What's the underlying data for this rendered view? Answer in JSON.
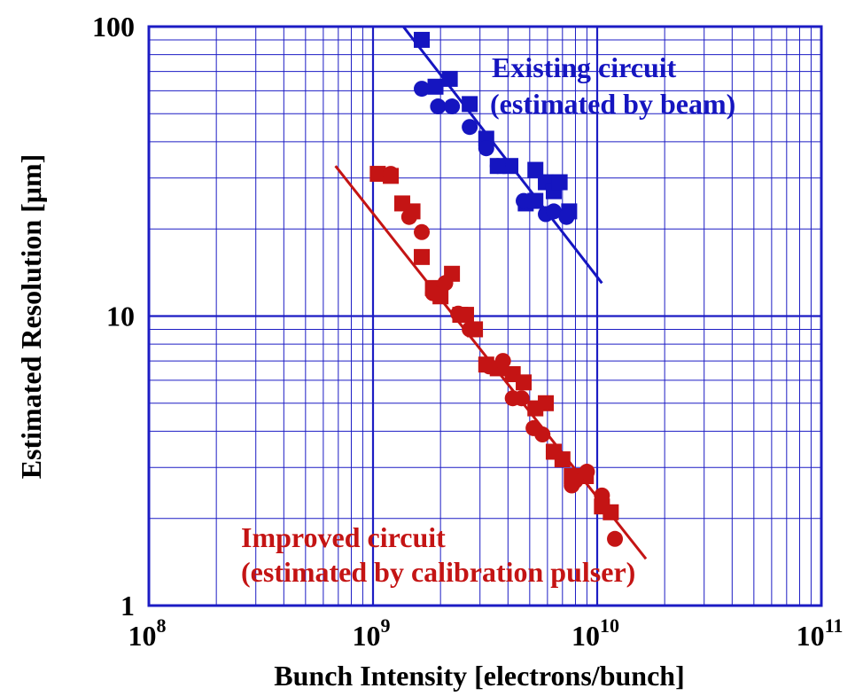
{
  "chart_data": {
    "type": "scatter",
    "xlabel": "Bunch Intensity [electrons/bunch]",
    "ylabel": "Estimated Resolution [μm]",
    "xscale": "log",
    "yscale": "log",
    "xlim": [
      100000000.0,
      100000000000.0
    ],
    "ylim": [
      1,
      100
    ],
    "grid": true,
    "x_ticks": [
      {
        "value": 100000000.0,
        "base": "10",
        "exp": "8"
      },
      {
        "value": 1000000000.0,
        "base": "10",
        "exp": "9"
      },
      {
        "value": 10000000000.0,
        "base": "10",
        "exp": "10"
      },
      {
        "value": 100000000000.0,
        "base": "10",
        "exp": "11"
      }
    ],
    "y_ticks": [
      {
        "value": 1,
        "label": "1"
      },
      {
        "value": 10,
        "label": "10"
      },
      {
        "value": 100,
        "label": "100"
      }
    ],
    "colors": {
      "frame": "#1c1cc4",
      "grid": "#1c1cc4",
      "existing": "#1515c0",
      "improved": "#c41414"
    },
    "series": [
      {
        "name": "Existing circuit (estimated by beam)",
        "color": "#1515c0",
        "marker": "square",
        "points": [
          [
            1650000000.0,
            90
          ],
          [
            1900000000.0,
            62
          ],
          [
            2200000000.0,
            66
          ],
          [
            2700000000.0,
            54
          ],
          [
            3200000000.0,
            41
          ],
          [
            3600000000.0,
            33
          ],
          [
            4100000000.0,
            33
          ],
          [
            4800000000.0,
            24.5
          ],
          [
            5300000000.0,
            32
          ],
          [
            5900000000.0,
            29
          ],
          [
            6400000000.0,
            27
          ],
          [
            6800000000.0,
            29
          ],
          [
            7500000000.0,
            23
          ],
          [
            5300000000.0,
            25
          ]
        ]
      },
      {
        "name": "Existing circuit (estimated by beam)",
        "color": "#1515c0",
        "marker": "circle",
        "points": [
          [
            1650000000.0,
            61
          ],
          [
            1950000000.0,
            53
          ],
          [
            2250000000.0,
            53
          ],
          [
            2700000000.0,
            45
          ],
          [
            3200000000.0,
            38
          ],
          [
            3600000000.0,
            33
          ],
          [
            4700000000.0,
            25
          ],
          [
            5900000000.0,
            22.5
          ],
          [
            6400000000.0,
            23
          ],
          [
            7300000000.0,
            22
          ]
        ]
      },
      {
        "name": "Existing circuit (estimated by beam)",
        "color": "#1515c0",
        "marker": "line",
        "points": [
          [
            1300000000.0,
            105
          ],
          [
            10500000000.0,
            13
          ]
        ]
      },
      {
        "name": "Improved circuit (estimated by calibration pulser)",
        "color": "#c41414",
        "marker": "square",
        "points": [
          [
            1050000000.0,
            31
          ],
          [
            1200000000.0,
            30.5
          ],
          [
            1350000000.0,
            24.5
          ],
          [
            1500000000.0,
            23
          ],
          [
            1650000000.0,
            16
          ],
          [
            1850000000.0,
            12.5
          ],
          [
            2000000000.0,
            11.7
          ],
          [
            2250000000.0,
            14
          ],
          [
            2450000000.0,
            10.1
          ],
          [
            2600000000.0,
            10.1
          ],
          [
            2850000000.0,
            9
          ],
          [
            3200000000.0,
            6.8
          ],
          [
            3600000000.0,
            6.6
          ],
          [
            4200000000.0,
            6.3
          ],
          [
            4700000000.0,
            5.9
          ],
          [
            5300000000.0,
            4.8
          ],
          [
            5900000000.0,
            5
          ],
          [
            6400000000.0,
            3.4
          ],
          [
            7000000000.0,
            3.2
          ],
          [
            7700000000.0,
            2.8
          ],
          [
            8900000000.0,
            2.8
          ],
          [
            10500000000.0,
            2.2
          ],
          [
            11500000000.0,
            2.1
          ]
        ]
      },
      {
        "name": "Improved circuit (estimated by calibration pulser)",
        "color": "#c41414",
        "marker": "circle",
        "points": [
          [
            1200000000.0,
            31
          ],
          [
            1450000000.0,
            22
          ],
          [
            1650000000.0,
            19.5
          ],
          [
            1850000000.0,
            12
          ],
          [
            2100000000.0,
            13
          ],
          [
            2400000000.0,
            10.2
          ],
          [
            2700000000.0,
            9
          ],
          [
            3300000000.0,
            6.7
          ],
          [
            3800000000.0,
            7
          ],
          [
            4200000000.0,
            5.2
          ],
          [
            4600000000.0,
            5.2
          ],
          [
            5200000000.0,
            4.1
          ],
          [
            5700000000.0,
            3.9
          ],
          [
            6400000000.0,
            3.4
          ],
          [
            7700000000.0,
            2.6
          ],
          [
            8000000000.0,
            2.7
          ],
          [
            9000000000.0,
            2.9
          ],
          [
            10500000000.0,
            2.4
          ],
          [
            12000000000.0,
            1.7
          ]
        ]
      },
      {
        "name": "Improved circuit (estimated by calibration pulser)",
        "color": "#c41414",
        "marker": "line",
        "points": [
          [
            680000000.0,
            33
          ],
          [
            16500000000.0,
            1.45
          ]
        ]
      }
    ],
    "annotations": [
      {
        "id": "existing-1",
        "text": "Existing circuit",
        "color": "#1515c0"
      },
      {
        "id": "existing-2",
        "text": "(estimated by beam)",
        "color": "#1515c0"
      },
      {
        "id": "improved-1",
        "text": "Improved circuit",
        "color": "#c41414"
      },
      {
        "id": "improved-2",
        "text": "(estimated by calibration pulser)",
        "color": "#c41414"
      }
    ]
  }
}
